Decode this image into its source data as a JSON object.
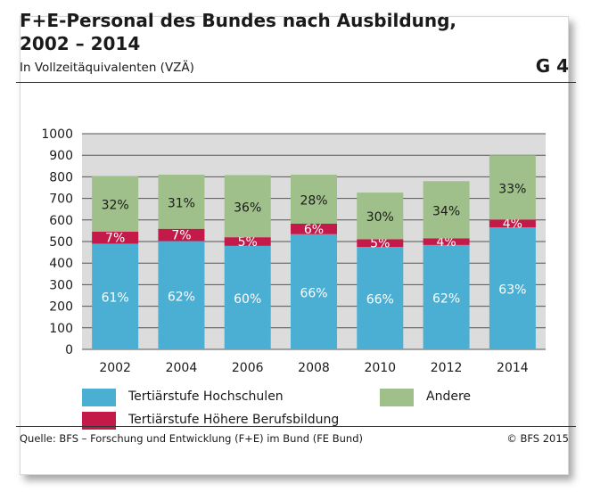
{
  "header": {
    "title": "F+E-Personal des Bundes nach Ausbildung, 2002 – 2014",
    "subtitle": "In Vollzeitäquivalenten (VZÄ)",
    "graphic_id": "G 4"
  },
  "footer": {
    "source": "Quelle: BFS – Forschung und Entwicklung (F+E) im Bund (FE Bund)",
    "copyright": "© BFS 2015"
  },
  "colors": {
    "hochschulen": "#4bafd3",
    "berufsbildung": "#c41a4a",
    "andere": "#9fc08a",
    "plot_bg": "#dcdcdc",
    "grid": "#555555"
  },
  "chart_data": {
    "type": "bar",
    "stacked": true,
    "categories": [
      "2002",
      "2004",
      "2006",
      "2008",
      "2010",
      "2012",
      "2014"
    ],
    "ylim": [
      0,
      1000
    ],
    "yticks": [
      "0",
      "100",
      "200",
      "300",
      "400",
      "500",
      "600",
      "700",
      "800",
      "900",
      "1000"
    ],
    "grid": true,
    "legend_position": "bottom",
    "series": [
      {
        "name": "Tertiärstufe Hochschulen",
        "values": [
          490,
          502,
          480,
          534,
          475,
          484,
          566
        ],
        "labels": [
          "61%",
          "62%",
          "60%",
          "66%",
          "66%",
          "62%",
          "63%"
        ]
      },
      {
        "name": "Tertiärstufe Höhere Berufsbildung",
        "values": [
          56,
          57,
          40,
          49,
          36,
          31,
          36
        ],
        "labels": [
          "7%",
          "7%",
          "5%",
          "6%",
          "5%",
          "4%",
          "4%"
        ]
      },
      {
        "name": "Andere",
        "values": [
          258,
          251,
          288,
          227,
          216,
          265,
          298
        ],
        "labels": [
          "32%",
          "31%",
          "36%",
          "28%",
          "30%",
          "34%",
          "33%"
        ]
      }
    ]
  }
}
